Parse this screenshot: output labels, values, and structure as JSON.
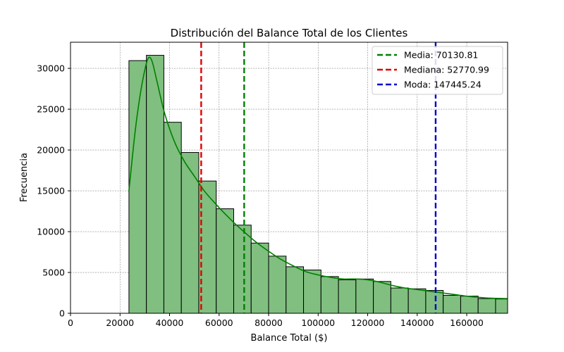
{
  "chart_data": {
    "type": "bar",
    "title": "Distribución del Balance Total de los Clientes",
    "xlabel": "Balance Total ($)",
    "ylabel": "Frecuencia",
    "xlim": [
      0,
      176500
    ],
    "ylim": [
      0,
      33200
    ],
    "xticks": [
      0,
      20000,
      40000,
      60000,
      80000,
      100000,
      120000,
      140000,
      160000
    ],
    "yticks": [
      0,
      5000,
      10000,
      15000,
      20000,
      25000,
      30000
    ],
    "grid": true,
    "legend_position": "top-right",
    "bin_edges": [
      23600,
      30650,
      37700,
      44750,
      51800,
      58850,
      65900,
      72950,
      80000,
      87050,
      94100,
      101150,
      108200,
      115250,
      122300,
      129350,
      136400,
      143450,
      150500,
      157550,
      164600,
      171650,
      178700
    ],
    "values": [
      30950,
      31600,
      23400,
      19700,
      16200,
      12800,
      10800,
      8600,
      7000,
      5700,
      5300,
      4500,
      4100,
      4200,
      3900,
      3100,
      3000,
      2800,
      2200,
      2100,
      1800,
      1750
    ],
    "kde": {
      "x": [
        23600,
        26000,
        28000,
        30000,
        31500,
        33000,
        35000,
        38000,
        42000,
        46000,
        50000,
        54000,
        58000,
        62000,
        66000,
        70000,
        75000,
        80000,
        85000,
        90000,
        95000,
        100000,
        105000,
        110000,
        115000,
        120000,
        125000,
        130000,
        135000,
        140000,
        145000,
        150000,
        155000,
        160000,
        165000,
        170000,
        176500
      ],
      "y": [
        15000,
        22000,
        26500,
        29800,
        31300,
        30800,
        28300,
        24500,
        21000,
        18600,
        16800,
        15000,
        13600,
        12300,
        11100,
        10000,
        8700,
        7600,
        6600,
        5800,
        5100,
        4700,
        4400,
        4200,
        4200,
        4100,
        3800,
        3400,
        3100,
        2900,
        2700,
        2500,
        2300,
        2100,
        1950,
        1850,
        1800
      ]
    },
    "vlines": [
      {
        "name": "Media: 70130.81",
        "x": 70130.81,
        "color": "#008000"
      },
      {
        "name": "Mediana: 52770.99",
        "x": 52770.99,
        "color": "#e00000"
      },
      {
        "name": "Moda: 147445.24",
        "x": 147445.24,
        "color": "#0000cc"
      }
    ],
    "bar_fill": "#80bf80",
    "kde_color": "#008000"
  }
}
